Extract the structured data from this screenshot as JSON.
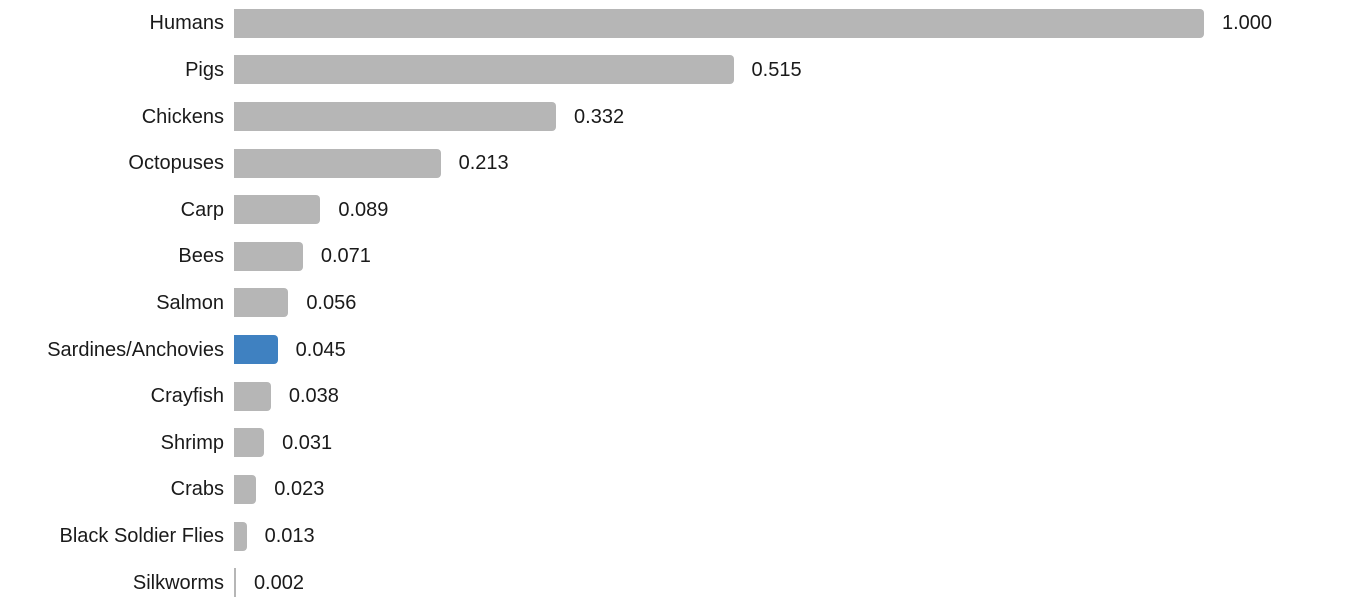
{
  "chart_data": {
    "type": "bar",
    "orientation": "horizontal",
    "title": "",
    "xlabel": "",
    "ylabel": "",
    "xlim": [
      0,
      1
    ],
    "grid": false,
    "legend": null,
    "categories": [
      "Humans",
      "Pigs",
      "Chickens",
      "Octopuses",
      "Carp",
      "Bees",
      "Salmon",
      "Sardines/Anchovies",
      "Crayfish",
      "Shrimp",
      "Crabs",
      "Black Soldier Flies",
      "Silkworms"
    ],
    "values": [
      1.0,
      0.515,
      0.332,
      0.213,
      0.089,
      0.071,
      0.056,
      0.045,
      0.038,
      0.031,
      0.023,
      0.013,
      0.002
    ],
    "value_labels": [
      "1.000",
      "0.515",
      "0.332",
      "0.213",
      "0.089",
      "0.071",
      "0.056",
      "0.045",
      "0.038",
      "0.031",
      "0.023",
      "0.013",
      "0.002"
    ],
    "highlighted_category": "Sardines/Anchovies",
    "highlight_index": 7,
    "colors": {
      "bar": "#b6b6b6",
      "highlight": "#3f81c1",
      "text": "#1a1a1a"
    }
  }
}
